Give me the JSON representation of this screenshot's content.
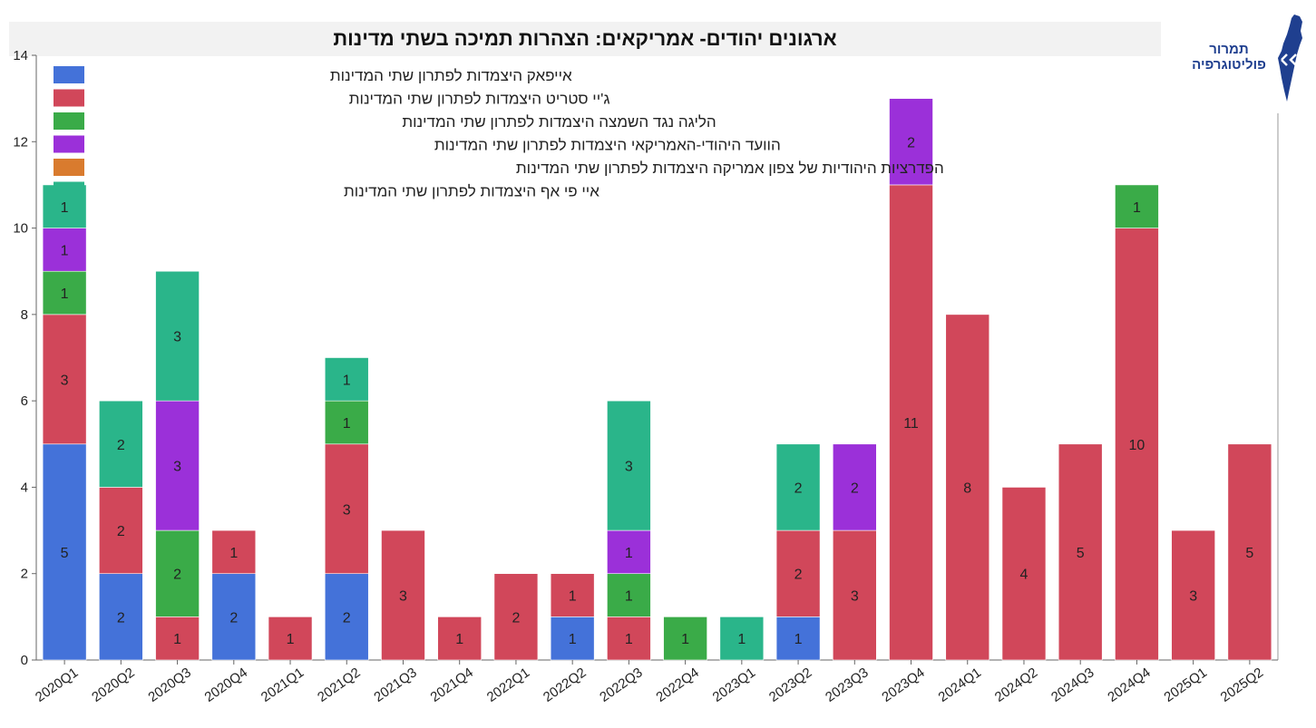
{
  "logo": {
    "line1": "תמרור",
    "line2": "פוליטוגרפיה",
    "icon": "israel-map-icon"
  },
  "chart_data": {
    "type": "bar",
    "stacked": true,
    "title": "ארגונים יהודים- אמריקאים: הצהרות תמיכה בשתי מדינות",
    "xlabel": "",
    "ylabel": "",
    "ylim": [
      0,
      14
    ],
    "yticks": [
      0,
      2,
      4,
      6,
      8,
      10,
      12,
      14
    ],
    "grid": false,
    "legend_position": "top-left",
    "categories": [
      "2020Q1",
      "2020Q2",
      "2020Q3",
      "2020Q4",
      "2021Q1",
      "2021Q2",
      "2021Q3",
      "2021Q4",
      "2022Q1",
      "2022Q2",
      "2022Q3",
      "2022Q4",
      "2023Q1",
      "2023Q2",
      "2023Q3",
      "2023Q4",
      "2024Q1",
      "2024Q2",
      "2024Q3",
      "2024Q4",
      "2025Q1",
      "2025Q2"
    ],
    "series": [
      {
        "name": "אייפאק היצמדות לפתרון שתי המדינות",
        "color": "#4472d9",
        "values": [
          5,
          2,
          0,
          2,
          0,
          2,
          0,
          0,
          0,
          1,
          0,
          0,
          0,
          1,
          0,
          0,
          0,
          0,
          0,
          0,
          0,
          0
        ]
      },
      {
        "name": "ג'יי סטריט היצמדות לפתרון שתי המדינות",
        "color": "#d1475a",
        "values": [
          3,
          2,
          1,
          1,
          1,
          3,
          3,
          1,
          2,
          1,
          1,
          0,
          0,
          2,
          3,
          11,
          8,
          4,
          5,
          10,
          3,
          5
        ]
      },
      {
        "name": "הליגה נגד השמצה היצמדות לפתרון שתי המדינות",
        "color": "#3aab48",
        "values": [
          1,
          0,
          2,
          0,
          0,
          1,
          0,
          0,
          0,
          0,
          1,
          1,
          0,
          0,
          0,
          0,
          0,
          0,
          0,
          1,
          0,
          0
        ]
      },
      {
        "name": "הוועד היהודי-האמריקאי היצמדות לפתרון שתי המדינות",
        "color": "#9b30d9",
        "values": [
          1,
          0,
          3,
          0,
          0,
          0,
          0,
          0,
          0,
          0,
          1,
          0,
          0,
          0,
          2,
          2,
          0,
          0,
          0,
          0,
          0,
          0
        ]
      },
      {
        "name": "הפדרציות היהודיות של צפון אמריקה היצמדות לפתרון שתי המדינות",
        "color": "#d97b2e",
        "values": [
          0,
          0,
          0,
          0,
          0,
          0,
          0,
          0,
          0,
          0,
          0,
          0,
          0,
          0,
          0,
          0,
          0,
          0,
          0,
          0,
          0,
          0
        ]
      },
      {
        "name": "איי פי אף  היצמדות לפתרון שתי המדינות",
        "color": "#2ab58a",
        "values": [
          1,
          2,
          3,
          0,
          0,
          1,
          0,
          0,
          0,
          0,
          3,
          0,
          1,
          2,
          0,
          0,
          0,
          0,
          0,
          0,
          0,
          0
        ]
      }
    ]
  }
}
